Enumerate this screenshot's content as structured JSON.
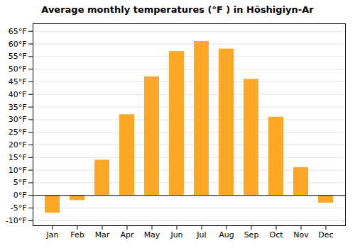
{
  "chart_data": {
    "type": "bar",
    "title": "Average monthly temperatures (°F ) in Höshigiyn-Ar",
    "categories": [
      "Jan",
      "Feb",
      "Mar",
      "Apr",
      "May",
      "Jun",
      "Jul",
      "Aug",
      "Sep",
      "Oct",
      "Nov",
      "Dec"
    ],
    "values": [
      -7,
      -2,
      14,
      32,
      47,
      57,
      61,
      58,
      46,
      31,
      11,
      -3
    ],
    "color": "#FFA726",
    "ylim": [
      -12,
      68
    ],
    "yticks": [
      {
        "value": -10,
        "label": "-10°F"
      },
      {
        "value": -5,
        "label": "-5°F"
      },
      {
        "value": 0,
        "label": "0°F"
      },
      {
        "value": 5,
        "label": "5°F"
      },
      {
        "value": 10,
        "label": "10°F"
      },
      {
        "value": 15,
        "label": "15°F"
      },
      {
        "value": 20,
        "label": "20°F"
      },
      {
        "value": 25,
        "label": "25°F"
      },
      {
        "value": 30,
        "label": "30°F"
      },
      {
        "value": 35,
        "label": "35°F"
      },
      {
        "value": 40,
        "label": "40°F"
      },
      {
        "value": 45,
        "label": "45°F"
      },
      {
        "value": 50,
        "label": "50°F"
      },
      {
        "value": 55,
        "label": "55°F"
      },
      {
        "value": 60,
        "label": "60°F"
      },
      {
        "value": 65,
        "label": "65°F"
      }
    ],
    "grid": true
  }
}
